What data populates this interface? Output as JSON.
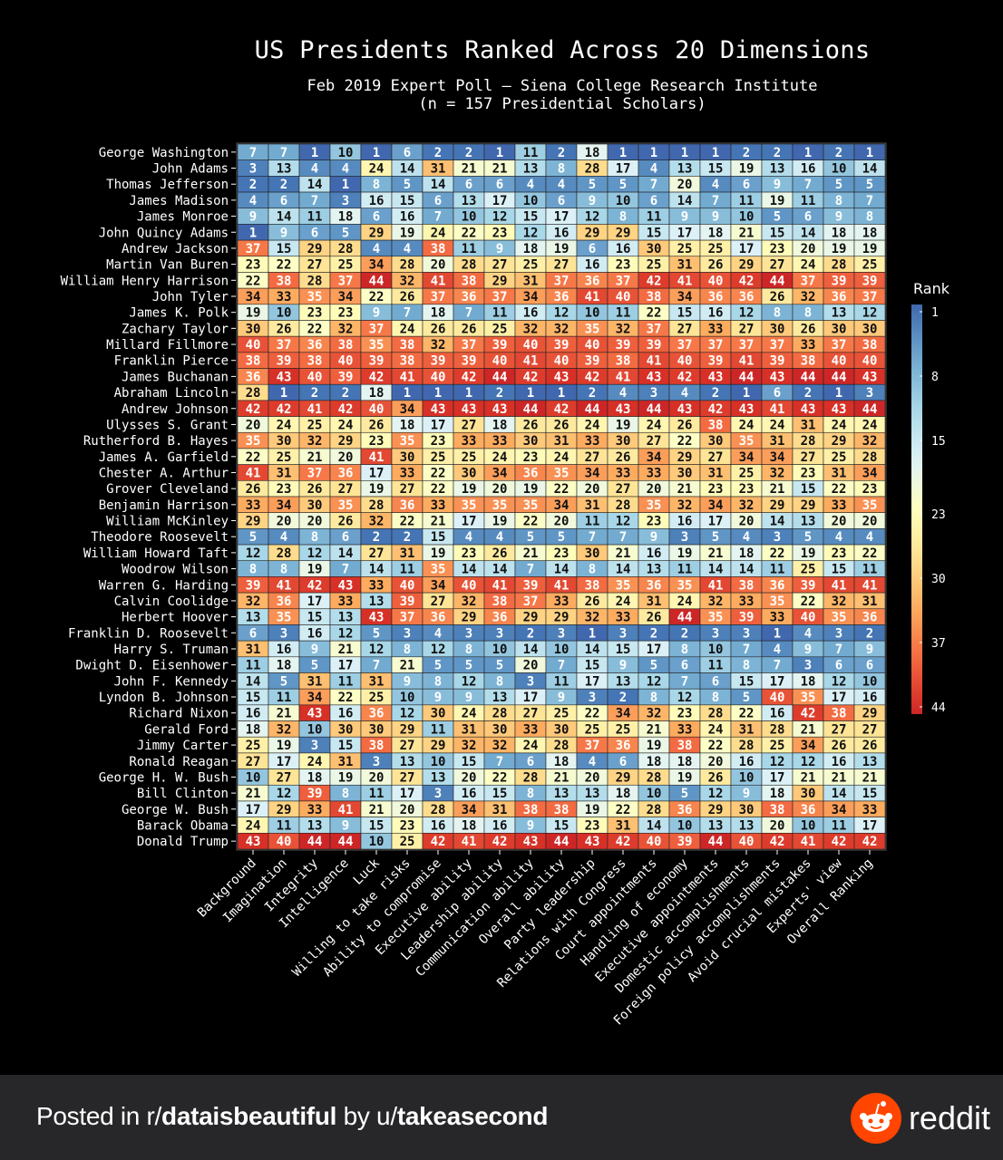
{
  "chart_data": {
    "type": "heatmap",
    "title": "US Presidents Ranked Across 20 Dimensions",
    "subtitle": "Feb 2019 Expert Poll – Siena College Research Institute\n(n = 157 Presidential Scholars)",
    "colorbar": {
      "label": "Rank",
      "ticks": [
        1,
        8,
        15,
        23,
        30,
        37,
        44
      ],
      "range": [
        1,
        44
      ],
      "colormap": "RdYlBu_reversed"
    },
    "columns": [
      "Background",
      "Imagination",
      "Integrity",
      "Intelligence",
      "Luck",
      "Willing to take risks",
      "Ability to compromise",
      "Executive ability",
      "Leadership ability",
      "Communication ability",
      "Overall ability",
      "Party leadership",
      "Relations with Congress",
      "Court appointments",
      "Handling of economy",
      "Executive appointments",
      "Domestic accomplishments",
      "Foreign policy accomplishments",
      "Avoid crucial mistakes",
      "Experts' view",
      "Overall Ranking"
    ],
    "rows": [
      {
        "name": "George Washington",
        "values": [
          7,
          7,
          1,
          10,
          1,
          6,
          2,
          2,
          1,
          11,
          2,
          18,
          1,
          1,
          1,
          1,
          2,
          2,
          1,
          2,
          1
        ]
      },
      {
        "name": "John Adams",
        "values": [
          3,
          13,
          4,
          4,
          24,
          14,
          31,
          21,
          21,
          13,
          8,
          28,
          17,
          4,
          13,
          15,
          19,
          13,
          16,
          10,
          14
        ]
      },
      {
        "name": "Thomas Jefferson",
        "values": [
          2,
          2,
          14,
          1,
          8,
          5,
          14,
          6,
          6,
          4,
          4,
          5,
          5,
          7,
          20,
          4,
          6,
          9,
          7,
          5,
          5
        ]
      },
      {
        "name": "James Madison",
        "values": [
          4,
          6,
          7,
          3,
          16,
          15,
          6,
          13,
          17,
          10,
          6,
          9,
          10,
          6,
          14,
          7,
          11,
          19,
          11,
          8,
          7
        ]
      },
      {
        "name": "James Monroe",
        "values": [
          9,
          14,
          11,
          18,
          6,
          16,
          7,
          10,
          12,
          15,
          17,
          12,
          8,
          11,
          9,
          9,
          10,
          5,
          6,
          9,
          8
        ]
      },
      {
        "name": "John Quincy Adams",
        "values": [
          1,
          9,
          6,
          5,
          29,
          19,
          24,
          22,
          23,
          12,
          16,
          29,
          29,
          15,
          17,
          18,
          21,
          15,
          14,
          18,
          18
        ]
      },
      {
        "name": "Andrew Jackson",
        "values": [
          37,
          15,
          29,
          28,
          4,
          4,
          38,
          11,
          9,
          18,
          19,
          6,
          16,
          30,
          25,
          25,
          17,
          23,
          20,
          19,
          19
        ]
      },
      {
        "name": "Martin Van Buren",
        "values": [
          23,
          22,
          27,
          25,
          34,
          28,
          20,
          28,
          27,
          25,
          27,
          16,
          23,
          25,
          31,
          26,
          29,
          27,
          24,
          28,
          25
        ]
      },
      {
        "name": "William Henry Harrison",
        "values": [
          22,
          38,
          28,
          37,
          44,
          32,
          41,
          38,
          29,
          31,
          37,
          36,
          37,
          42,
          41,
          40,
          42,
          44,
          37,
          39,
          39
        ]
      },
      {
        "name": "John Tyler",
        "values": [
          34,
          33,
          35,
          34,
          22,
          26,
          37,
          36,
          37,
          34,
          36,
          41,
          40,
          38,
          34,
          36,
          36,
          26,
          32,
          36,
          37
        ]
      },
      {
        "name": "James K. Polk",
        "values": [
          19,
          10,
          23,
          23,
          9,
          7,
          18,
          7,
          11,
          16,
          12,
          10,
          11,
          22,
          15,
          16,
          12,
          8,
          8,
          13,
          12
        ]
      },
      {
        "name": "Zachary Taylor",
        "values": [
          30,
          26,
          22,
          32,
          37,
          24,
          26,
          26,
          25,
          32,
          32,
          35,
          32,
          37,
          27,
          33,
          27,
          30,
          26,
          30,
          30
        ]
      },
      {
        "name": "Millard Fillmore",
        "values": [
          40,
          37,
          36,
          38,
          35,
          38,
          32,
          37,
          39,
          40,
          39,
          40,
          39,
          39,
          37,
          37,
          37,
          37,
          33,
          37,
          38
        ]
      },
      {
        "name": "Franklin Pierce",
        "values": [
          38,
          39,
          38,
          40,
          39,
          38,
          39,
          39,
          40,
          41,
          40,
          39,
          38,
          41,
          40,
          39,
          41,
          39,
          38,
          40,
          40
        ]
      },
      {
        "name": "James Buchanan",
        "values": [
          36,
          43,
          40,
          39,
          42,
          41,
          40,
          42,
          44,
          42,
          43,
          42,
          41,
          43,
          42,
          43,
          44,
          43,
          44,
          44,
          43
        ]
      },
      {
        "name": "Abraham Lincoln",
        "values": [
          28,
          1,
          2,
          2,
          18,
          1,
          1,
          1,
          2,
          1,
          1,
          2,
          4,
          3,
          4,
          2,
          1,
          6,
          2,
          1,
          3
        ]
      },
      {
        "name": "Andrew Johnson",
        "values": [
          42,
          42,
          41,
          42,
          40,
          34,
          43,
          43,
          43,
          44,
          42,
          44,
          43,
          44,
          43,
          42,
          43,
          41,
          43,
          43,
          44
        ]
      },
      {
        "name": "Ulysses S. Grant",
        "values": [
          20,
          24,
          25,
          24,
          26,
          18,
          17,
          27,
          18,
          26,
          26,
          24,
          19,
          24,
          26,
          38,
          24,
          24,
          31,
          24,
          24
        ]
      },
      {
        "name": "Rutherford B. Hayes",
        "values": [
          35,
          30,
          32,
          29,
          23,
          35,
          23,
          33,
          33,
          30,
          31,
          33,
          30,
          27,
          22,
          30,
          35,
          31,
          28,
          29,
          32
        ]
      },
      {
        "name": "James A. Garfield",
        "values": [
          22,
          25,
          21,
          20,
          41,
          30,
          25,
          25,
          24,
          23,
          24,
          27,
          26,
          34,
          29,
          27,
          34,
          34,
          27,
          25,
          28
        ]
      },
      {
        "name": "Chester A. Arthur",
        "values": [
          41,
          31,
          37,
          36,
          17,
          33,
          22,
          30,
          34,
          36,
          35,
          34,
          33,
          33,
          30,
          31,
          25,
          32,
          23,
          31,
          34
        ]
      },
      {
        "name": "Grover Cleveland",
        "values": [
          26,
          23,
          26,
          27,
          19,
          27,
          22,
          19,
          20,
          19,
          22,
          20,
          27,
          20,
          21,
          23,
          23,
          21,
          15,
          22,
          23
        ]
      },
      {
        "name": "Benjamin Harrison",
        "values": [
          33,
          34,
          30,
          35,
          28,
          36,
          33,
          35,
          35,
          35,
          34,
          31,
          28,
          35,
          32,
          34,
          32,
          29,
          29,
          33,
          35
        ]
      },
      {
        "name": "William McKinley",
        "values": [
          29,
          20,
          20,
          26,
          32,
          22,
          21,
          17,
          19,
          22,
          20,
          11,
          12,
          23,
          16,
          17,
          20,
          14,
          13,
          20,
          20
        ]
      },
      {
        "name": "Theodore Roosevelt",
        "values": [
          5,
          4,
          8,
          6,
          2,
          2,
          15,
          4,
          4,
          5,
          5,
          7,
          7,
          9,
          3,
          5,
          4,
          3,
          5,
          4,
          4
        ]
      },
      {
        "name": "William Howard Taft",
        "values": [
          12,
          28,
          12,
          14,
          27,
          31,
          19,
          23,
          26,
          21,
          23,
          30,
          21,
          16,
          19,
          21,
          18,
          22,
          19,
          23,
          22
        ]
      },
      {
        "name": "Woodrow Wilson",
        "values": [
          8,
          8,
          19,
          7,
          14,
          11,
          35,
          14,
          14,
          7,
          14,
          8,
          14,
          13,
          11,
          14,
          14,
          11,
          25,
          15,
          11
        ]
      },
      {
        "name": "Warren G. Harding",
        "values": [
          39,
          41,
          42,
          43,
          33,
          40,
          34,
          40,
          41,
          39,
          41,
          38,
          35,
          36,
          35,
          41,
          38,
          36,
          39,
          41,
          41
        ]
      },
      {
        "name": "Calvin Coolidge",
        "values": [
          32,
          36,
          17,
          33,
          13,
          39,
          27,
          32,
          38,
          37,
          33,
          26,
          24,
          31,
          24,
          32,
          33,
          35,
          22,
          32,
          31
        ]
      },
      {
        "name": "Herbert Hoover",
        "values": [
          13,
          35,
          15,
          13,
          43,
          37,
          36,
          29,
          36,
          29,
          29,
          32,
          33,
          26,
          44,
          35,
          39,
          33,
          40,
          35,
          36
        ]
      },
      {
        "name": "Franklin D. Roosevelt",
        "values": [
          6,
          3,
          16,
          12,
          5,
          3,
          4,
          3,
          3,
          2,
          3,
          1,
          3,
          2,
          2,
          3,
          3,
          1,
          4,
          3,
          2
        ]
      },
      {
        "name": "Harry S. Truman",
        "values": [
          31,
          16,
          9,
          21,
          12,
          8,
          12,
          8,
          10,
          14,
          10,
          14,
          15,
          17,
          8,
          10,
          7,
          4,
          9,
          7,
          9
        ]
      },
      {
        "name": "Dwight D. Eisenhower",
        "values": [
          11,
          18,
          5,
          17,
          7,
          21,
          5,
          5,
          5,
          20,
          7,
          15,
          9,
          5,
          6,
          11,
          8,
          7,
          3,
          6,
          6
        ]
      },
      {
        "name": "John F. Kennedy",
        "values": [
          14,
          5,
          31,
          11,
          31,
          9,
          8,
          12,
          8,
          3,
          11,
          17,
          13,
          12,
          7,
          6,
          15,
          17,
          18,
          12,
          10
        ]
      },
      {
        "name": "Lyndon B. Johnson",
        "values": [
          15,
          11,
          34,
          22,
          25,
          10,
          9,
          9,
          13,
          17,
          9,
          3,
          2,
          8,
          12,
          8,
          5,
          40,
          35,
          17,
          16
        ]
      },
      {
        "name": "Richard Nixon",
        "values": [
          16,
          21,
          43,
          16,
          36,
          12,
          30,
          24,
          28,
          27,
          25,
          22,
          34,
          32,
          23,
          28,
          22,
          16,
          42,
          38,
          29
        ]
      },
      {
        "name": "Gerald Ford",
        "values": [
          18,
          32,
          10,
          30,
          30,
          29,
          11,
          31,
          30,
          33,
          30,
          25,
          25,
          21,
          33,
          24,
          31,
          28,
          21,
          27,
          27
        ]
      },
      {
        "name": "Jimmy Carter",
        "values": [
          25,
          19,
          3,
          15,
          38,
          27,
          29,
          32,
          32,
          24,
          28,
          37,
          36,
          19,
          38,
          22,
          28,
          25,
          34,
          26,
          26
        ]
      },
      {
        "name": "Ronald Reagan",
        "values": [
          27,
          17,
          24,
          31,
          3,
          13,
          10,
          15,
          7,
          6,
          18,
          4,
          6,
          18,
          18,
          20,
          16,
          12,
          12,
          16,
          13
        ]
      },
      {
        "name": "George H. W. Bush",
        "values": [
          10,
          27,
          18,
          19,
          20,
          27,
          13,
          20,
          22,
          28,
          21,
          20,
          29,
          28,
          19,
          26,
          10,
          17,
          21,
          21,
          21
        ]
      },
      {
        "name": "Bill Clinton",
        "values": [
          21,
          12,
          39,
          8,
          11,
          17,
          3,
          16,
          15,
          8,
          13,
          13,
          18,
          10,
          5,
          12,
          9,
          18,
          30,
          14,
          15
        ]
      },
      {
        "name": "George W. Bush",
        "values": [
          17,
          29,
          33,
          41,
          21,
          20,
          28,
          34,
          31,
          38,
          38,
          19,
          22,
          28,
          36,
          29,
          30,
          38,
          36,
          34,
          33
        ]
      },
      {
        "name": "Barack Obama",
        "values": [
          24,
          11,
          13,
          9,
          15,
          23,
          16,
          18,
          16,
          9,
          15,
          23,
          31,
          14,
          10,
          13,
          13,
          20,
          10,
          11,
          17
        ]
      },
      {
        "name": "Donald Trump",
        "values": [
          43,
          40,
          44,
          44,
          10,
          25,
          42,
          41,
          42,
          43,
          44,
          43,
          42,
          40,
          39,
          44,
          40,
          42,
          41,
          42,
          42
        ]
      }
    ]
  },
  "footer": {
    "prefix": "Posted in r/",
    "subreddit": "dataisbeautiful",
    "middle": " by u/",
    "user": "takeasecond",
    "brand": "reddit"
  },
  "colors": {
    "reddit_orange": "#ff4500",
    "footer_bg": "#272729"
  }
}
